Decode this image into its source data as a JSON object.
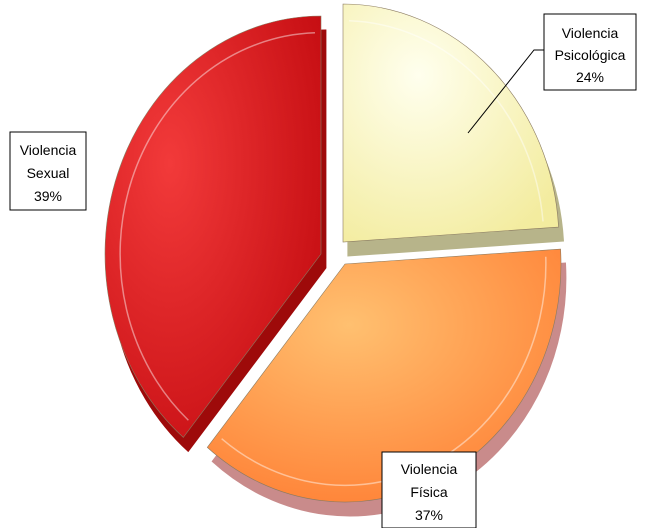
{
  "chart_data": {
    "type": "pie",
    "style": "3d-exploded",
    "slices": [
      {
        "category_line1": "Violencia",
        "category_line2": "Psicológica",
        "percent_label": "24%",
        "value": 24,
        "color": "#fbf7bd",
        "side_color": "#b7b48a"
      },
      {
        "category_line1": "Violencia",
        "category_line2": "Física",
        "percent_label": "37%",
        "value": 37,
        "color": "#ff9a4a",
        "side_color": "#c98b8b"
      },
      {
        "category_line1": "Violencia",
        "category_line2": "Sexual",
        "percent_label": "39%",
        "value": 39,
        "color": "#e3141a",
        "side_color": "#9e0a0a"
      }
    ],
    "legend": "none",
    "data_labels": "callout-boxes"
  }
}
